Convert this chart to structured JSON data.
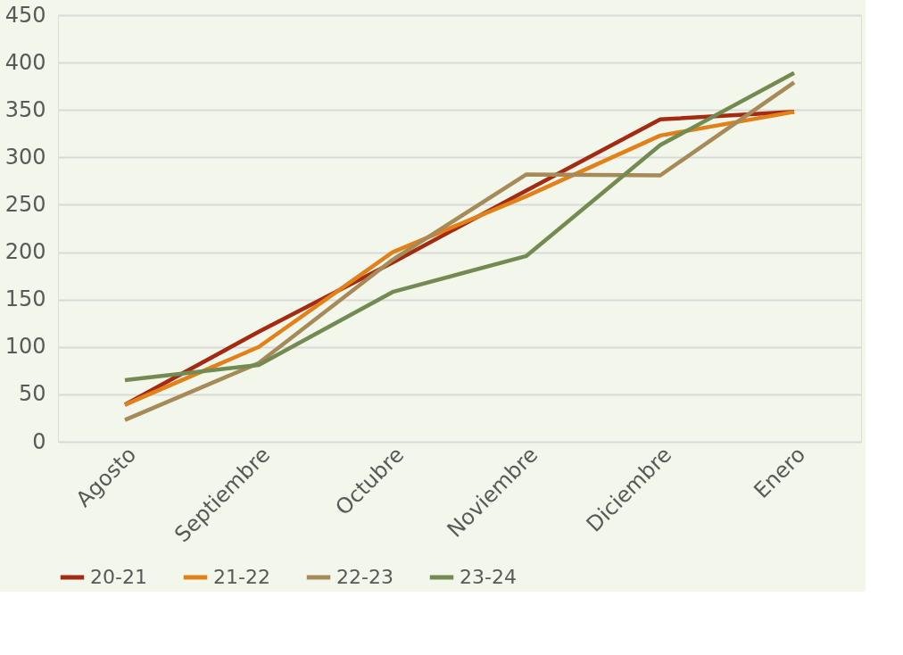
{
  "chart_data": {
    "type": "line",
    "categories": [
      "Agosto",
      "Septiembre",
      "Octubre",
      "Noviembre",
      "Diciembre",
      "Enero"
    ],
    "series": [
      {
        "name": "20-21",
        "color": "#a52a12",
        "values": [
          39,
          116,
          189,
          265,
          340,
          348
        ]
      },
      {
        "name": "21-22",
        "color": "#e2801a",
        "values": [
          39,
          100,
          200,
          259,
          323,
          348
        ]
      },
      {
        "name": "22-23",
        "color": "#a68a57",
        "values": [
          23,
          83,
          192,
          282,
          281,
          379
        ]
      },
      {
        "name": "23-24",
        "color": "#738a51",
        "values": [
          65,
          81,
          158,
          196,
          313,
          389
        ]
      }
    ],
    "ylim": [
      0,
      450
    ],
    "yticks": [
      0,
      50,
      100,
      150,
      200,
      250,
      300,
      350,
      400,
      450
    ],
    "grid": "y",
    "legend": "bottom",
    "line_style": "solid",
    "marker": "none"
  }
}
